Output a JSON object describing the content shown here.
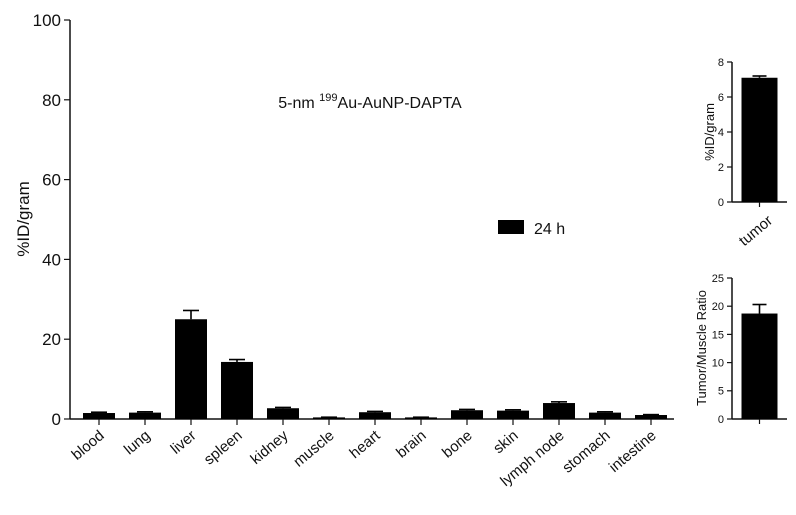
{
  "chart_data": [
    {
      "type": "bar",
      "title": "5-nm {sup:199}Au-AuNP-DAPTA",
      "title_parts": {
        "pre": "5-nm ",
        "sup": "199",
        "post": "Au-AuNP-DAPTA"
      },
      "ylabel": "%ID/gram",
      "ylim": [
        0,
        100
      ],
      "yticks": [
        "0",
        "20",
        "40",
        "60",
        "80",
        "100"
      ],
      "legend": {
        "position": "right-middle"
      },
      "series": [
        {
          "name": "24 h",
          "color": "#000000",
          "categories": [
            "blood",
            "lung",
            "liver",
            "spleen",
            "kidney",
            "muscle",
            "heart",
            "brain",
            "bone",
            "skin",
            "lymph node",
            "stomach",
            "intestine"
          ],
          "values": [
            1.5,
            1.6,
            25.0,
            14.3,
            2.7,
            0.4,
            1.7,
            0.4,
            2.2,
            2.1,
            4.0,
            1.6,
            1.0
          ],
          "errors": [
            0.2,
            0.2,
            2.2,
            0.6,
            0.2,
            0.05,
            0.2,
            0.05,
            0.2,
            0.2,
            0.3,
            0.2,
            0.1
          ]
        }
      ]
    },
    {
      "type": "bar",
      "ylabel": "%ID/gram",
      "ylim": [
        0,
        8
      ],
      "yticks": [
        "0",
        "2",
        "4",
        "6",
        "8"
      ],
      "categories": [
        "tumor"
      ],
      "values": [
        7.1
      ],
      "errors": [
        0.1
      ]
    },
    {
      "type": "bar",
      "ylabel": "Tumor/Muscle Ratio",
      "ylim": [
        0,
        25
      ],
      "yticks": [
        "0",
        "5",
        "10",
        "15",
        "20",
        "25"
      ],
      "categories": [
        ""
      ],
      "values": [
        18.7
      ],
      "errors": [
        1.6
      ]
    }
  ]
}
